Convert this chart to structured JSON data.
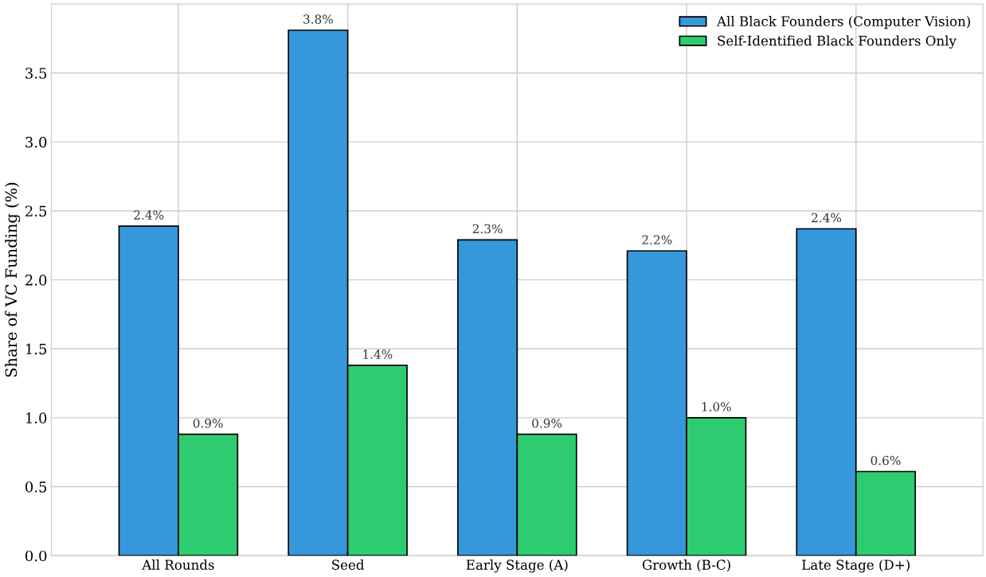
{
  "chart_data": {
    "type": "bar",
    "ylabel": "Share of VC Funding (%)",
    "categories": [
      "All Rounds",
      "Seed",
      "Early Stage (A)",
      "Growth (B-C)",
      "Late Stage (D+)"
    ],
    "series": [
      {
        "name": "All Black Founders (Computer Vision)",
        "color": "#3498db",
        "values": [
          2.39,
          3.81,
          2.29,
          2.21,
          2.37
        ],
        "value_labels": [
          "2.4%",
          "3.8%",
          "2.3%",
          "2.2%",
          "2.4%"
        ]
      },
      {
        "name": "Self-Identified Black Founders Only",
        "color": "#2ecc71",
        "values": [
          0.88,
          1.38,
          0.88,
          1.0,
          0.61
        ],
        "value_labels": [
          "0.9%",
          "1.4%",
          "0.9%",
          "1.0%",
          "0.6%"
        ]
      }
    ],
    "ylim": [
      0,
      4.0
    ],
    "yticks": [
      {
        "value": 0,
        "label": "0.0"
      },
      0.5,
      {
        "value": 1,
        "label": "1.0"
      },
      1.5,
      {
        "value": 2,
        "label": "2.0"
      },
      2.5,
      {
        "value": 3,
        "label": "3.0"
      },
      3.5
    ],
    "grid": true,
    "legend": "top right"
  }
}
